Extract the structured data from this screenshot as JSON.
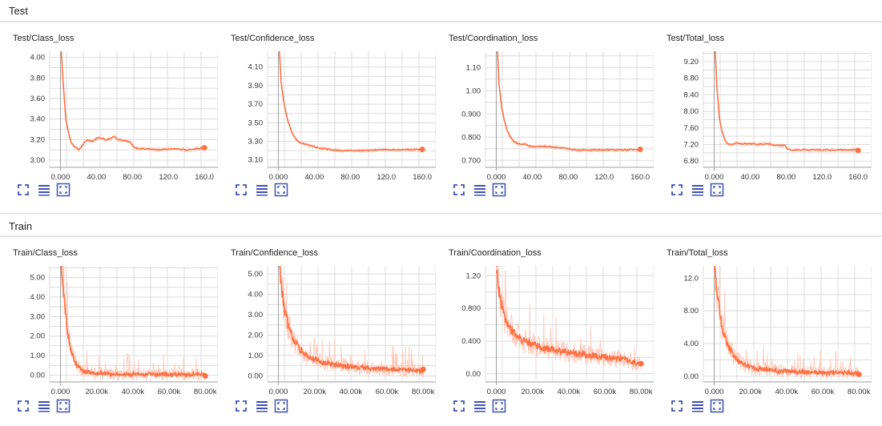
{
  "sections": [
    {
      "title": "Test",
      "charts": [
        {
          "title": "Test/Class_loss",
          "chart_data": {
            "type": "line",
            "x_ticks": [
              "0.000",
              "40.00",
              "80.00",
              "120.0",
              "160.0"
            ],
            "y_ticks": [
              "3.00",
              "3.20",
              "3.40",
              "3.60",
              "3.80",
              "4.00"
            ],
            "xlim": [
              -12,
              175
            ],
            "ylim": [
              2.93,
              4.06
            ],
            "x": [
              0,
              3,
              6,
              9,
              12,
              15,
              20,
              25,
              30,
              35,
              40,
              45,
              50,
              55,
              60,
              65,
              70,
              75,
              78,
              82,
              90,
              100,
              110,
              120,
              130,
              140,
              150,
              160
            ],
            "y": [
              4.2,
              3.75,
              3.4,
              3.27,
              3.17,
              3.14,
              3.1,
              3.15,
              3.2,
              3.18,
              3.21,
              3.22,
              3.2,
              3.21,
              3.23,
              3.2,
              3.19,
              3.18,
              3.17,
              3.12,
              3.11,
              3.11,
              3.1,
              3.11,
              3.11,
              3.1,
              3.11,
              3.12
            ]
          }
        },
        {
          "title": "Test/Confidence_loss",
          "chart_data": {
            "type": "line",
            "x_ticks": [
              "0.000",
              "40.00",
              "80.00",
              "120.0",
              "160.0"
            ],
            "y_ticks": [
              "3.10",
              "3.30",
              "3.50",
              "3.70",
              "3.90",
              "4.10"
            ],
            "xlim": [
              -12,
              175
            ],
            "ylim": [
              3.02,
              4.27
            ],
            "x": [
              0,
              3,
              6,
              9,
              12,
              16,
              20,
              25,
              30,
              35,
              40,
              50,
              60,
              70,
              80,
              90,
              100,
              110,
              120,
              130,
              140,
              150,
              160
            ],
            "y": [
              4.5,
              3.95,
              3.72,
              3.58,
              3.48,
              3.37,
              3.32,
              3.28,
              3.27,
              3.25,
              3.24,
              3.22,
              3.21,
              3.2,
              3.2,
              3.2,
              3.2,
              3.21,
              3.21,
              3.21,
              3.21,
              3.21,
              3.21
            ]
          }
        },
        {
          "title": "Test/Coordination_loss",
          "chart_data": {
            "type": "line",
            "x_ticks": [
              "0.000",
              "40.00",
              "80.00",
              "120.0",
              "160.0"
            ],
            "y_ticks": [
              "0.700",
              "0.800",
              "0.900",
              "1.00",
              "1.10"
            ],
            "xlim": [
              -12,
              175
            ],
            "ylim": [
              0.67,
              1.17
            ],
            "x": [
              0,
              3,
              6,
              9,
              12,
              16,
              20,
              25,
              30,
              40,
              50,
              60,
              70,
              80,
              90,
              100,
              110,
              120,
              130,
              140,
              150,
              160
            ],
            "y": [
              1.3,
              1.03,
              0.93,
              0.87,
              0.83,
              0.8,
              0.78,
              0.77,
              0.77,
              0.76,
              0.76,
              0.76,
              0.755,
              0.75,
              0.745,
              0.745,
              0.745,
              0.745,
              0.745,
              0.745,
              0.745,
              0.745
            ]
          }
        },
        {
          "title": "Test/Total_loss",
          "chart_data": {
            "type": "line",
            "x_ticks": [
              "0.000",
              "40.00",
              "80.00",
              "120.0",
              "160.0"
            ],
            "y_ticks": [
              "6.80",
              "7.20",
              "7.60",
              "8.00",
              "8.40",
              "8.80",
              "9.20"
            ],
            "xlim": [
              -12,
              175
            ],
            "ylim": [
              6.65,
              9.45
            ],
            "x": [
              0,
              3,
              6,
              9,
              12,
              16,
              20,
              25,
              30,
              40,
              50,
              60,
              70,
              78,
              82,
              90,
              100,
              110,
              120,
              130,
              140,
              150,
              160
            ],
            "y": [
              10,
              8.6,
              7.8,
              7.5,
              7.3,
              7.2,
              7.2,
              7.25,
              7.22,
              7.22,
              7.2,
              7.22,
              7.18,
              7.18,
              7.08,
              7.07,
              7.07,
              7.07,
              7.07,
              7.07,
              7.07,
              7.07,
              7.07
            ]
          }
        }
      ]
    },
    {
      "title": "Train",
      "charts": [
        {
          "title": "Train/Class_loss",
          "chart_data": {
            "type": "line",
            "x_ticks": [
              "0.000",
              "20.00k",
              "40.00k",
              "60.00k",
              "80.00k"
            ],
            "y_ticks": [
              "0.00",
              "1.00",
              "2.00",
              "3.00",
              "4.00",
              "5.00"
            ],
            "xlim": [
              -6000,
              87000
            ],
            "ylim": [
              -0.35,
              5.6
            ],
            "x": [
              0,
              1000,
              2000,
              3000,
              4000,
              5000,
              6000,
              8000,
              10000,
              12000,
              15000,
              20000,
              30000,
              40000,
              50000,
              60000,
              70000,
              80000
            ],
            "y": [
              6.5,
              5.0,
              4.0,
              3.0,
              2.2,
              1.6,
              1.2,
              0.7,
              0.4,
              0.25,
              0.15,
              0.08,
              0.05,
              0.05,
              0.04,
              0.04,
              0.03,
              0.03
            ]
          }
        },
        {
          "title": "Train/Confidence_loss",
          "chart_data": {
            "type": "line",
            "x_ticks": [
              "0.000",
              "20.00k",
              "40.00k",
              "60.00k",
              "80.00k"
            ],
            "y_ticks": [
              "0.00",
              "1.00",
              "2.00",
              "3.00",
              "4.00",
              "5.00"
            ],
            "xlim": [
              -6000,
              87000
            ],
            "ylim": [
              -0.3,
              5.4
            ],
            "x": [
              0,
              1000,
              2000,
              3000,
              4000,
              6000,
              8000,
              10000,
              12000,
              15000,
              20000,
              25000,
              30000,
              40000,
              50000,
              60000,
              70000,
              80000
            ],
            "y": [
              6,
              4.8,
              4.2,
              3.5,
              3.0,
              2.3,
              1.9,
              1.6,
              1.3,
              1.05,
              0.8,
              0.65,
              0.55,
              0.45,
              0.38,
              0.32,
              0.28,
              0.25
            ]
          }
        },
        {
          "title": "Train/Coordination_loss",
          "chart_data": {
            "type": "line",
            "x_ticks": [
              "0.000",
              "20.00k",
              "40.00k",
              "60.00k",
              "80.00k"
            ],
            "y_ticks": [
              "0.00",
              "0.400",
              "0.800",
              "1.20"
            ],
            "xlim": [
              -6000,
              87000
            ],
            "ylim": [
              -0.1,
              1.32
            ],
            "x": [
              0,
              1000,
              2000,
              3000,
              4000,
              6000,
              8000,
              10000,
              12000,
              15000,
              20000,
              25000,
              30000,
              40000,
              50000,
              60000,
              70000,
              80000
            ],
            "y": [
              1.3,
              1.1,
              0.95,
              0.85,
              0.75,
              0.63,
              0.55,
              0.5,
              0.45,
              0.4,
              0.36,
              0.32,
              0.3,
              0.26,
              0.23,
              0.2,
              0.18,
              0.12
            ]
          }
        },
        {
          "title": "Train/Total_loss",
          "chart_data": {
            "type": "line",
            "x_ticks": [
              "0.000",
              "20.00k",
              "40.00k",
              "60.00k",
              "80.00k"
            ],
            "y_ticks": [
              "0.00",
              "4.00",
              "8.00",
              "12.0"
            ],
            "xlim": [
              -6000,
              87000
            ],
            "ylim": [
              -0.7,
              13.5
            ],
            "x": [
              0,
              1000,
              2000,
              3000,
              4000,
              6000,
              8000,
              10000,
              12000,
              15000,
              20000,
              25000,
              30000,
              40000,
              50000,
              60000,
              70000,
              80000
            ],
            "y": [
              14,
              11.5,
              9.5,
              7.8,
              6.5,
              4.8,
              3.6,
              2.8,
              2.2,
              1.6,
              1.1,
              0.9,
              0.75,
              0.6,
              0.5,
              0.45,
              0.4,
              0.35
            ]
          }
        }
      ]
    }
  ],
  "colors": {
    "line": "#ff7043",
    "line_light": "#ffccbc",
    "grid": "#dcdcdc",
    "axis": "#bdbdbd",
    "icon": "#3f51b5"
  },
  "toolbar_icons": [
    "fullscreen-icon",
    "toggle-log-scale-icon",
    "fit-domain-icon"
  ]
}
